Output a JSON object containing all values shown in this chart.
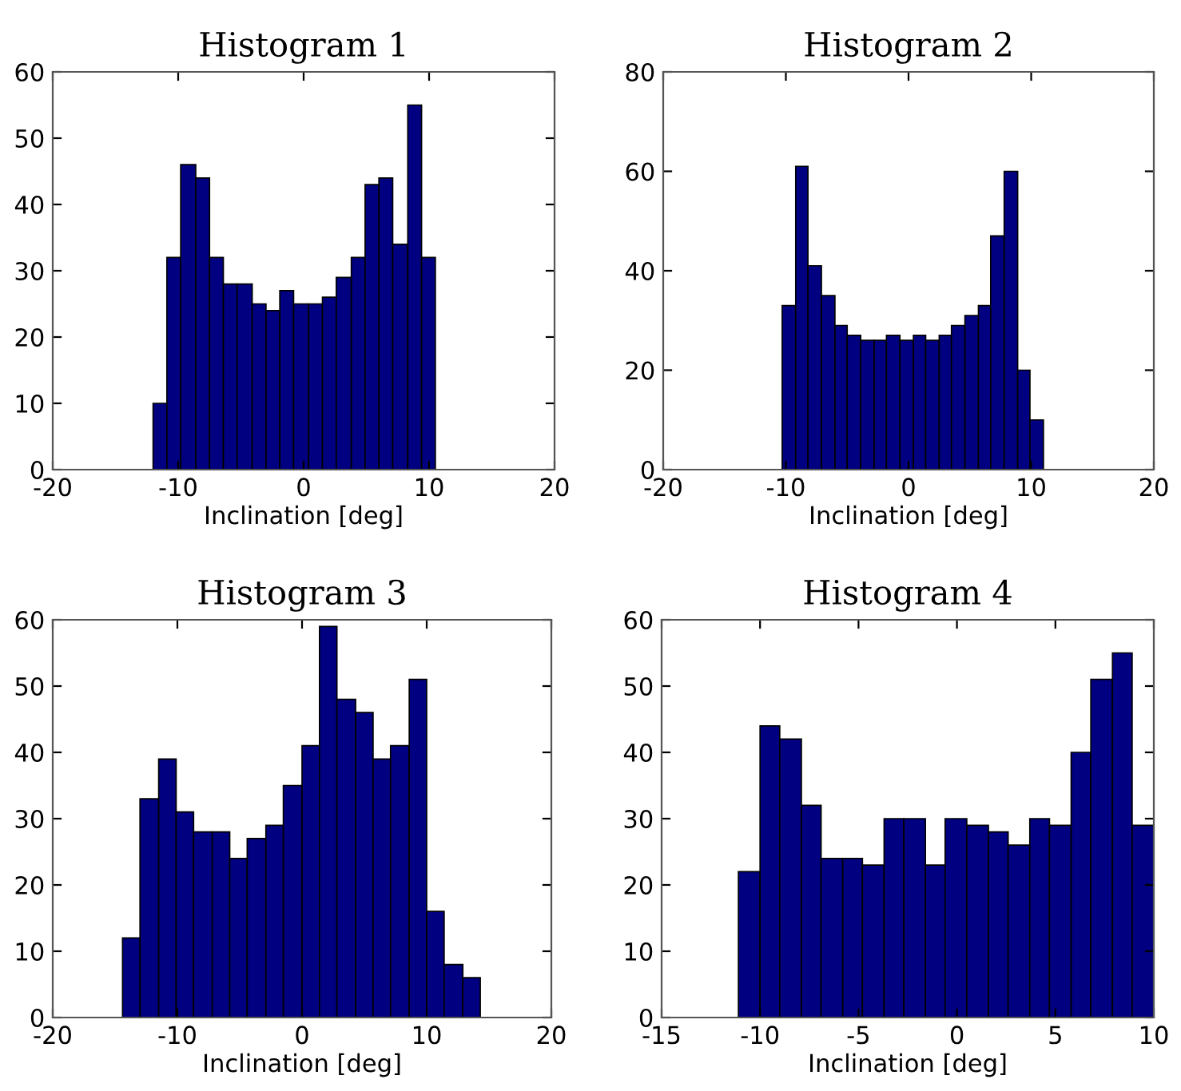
{
  "chart_data": [
    {
      "type": "histogram",
      "title": "Histogram 1",
      "xlabel": "Inclination [deg]",
      "color": "#000080",
      "bins": [
        -12,
        -10.9,
        -9.8,
        -8.6,
        -7.5,
        -6.4,
        -5.3,
        -4.1,
        -3,
        -1.9,
        -0.8,
        0.4,
        1.5,
        2.6,
        3.8,
        4.9,
        6,
        7.1,
        8.3,
        9.4,
        10.5
      ],
      "values": [
        10,
        32,
        46,
        44,
        32,
        28,
        28,
        25,
        24,
        27,
        25,
        25,
        26,
        29,
        32,
        43,
        44,
        34,
        55,
        32
      ],
      "xlim": [
        -20,
        20
      ],
      "xticks": [
        -20,
        -10,
        0,
        10,
        20
      ],
      "ylim": [
        0,
        60
      ],
      "yticks": [
        0,
        10,
        20,
        30,
        40,
        50,
        60
      ]
    },
    {
      "type": "histogram",
      "title": "Histogram 2",
      "xlabel": "Inclination [deg]",
      "color": "#000080",
      "bins": [
        -10.3,
        -9.2,
        -8.2,
        -7.1,
        -6.0,
        -5.0,
        -3.9,
        -2.8,
        -1.8,
        -0.7,
        0.4,
        1.4,
        2.5,
        3.5,
        4.6,
        5.7,
        6.7,
        7.8,
        8.9,
        9.9,
        11.0
      ],
      "values": [
        33,
        61,
        41,
        35,
        29,
        27,
        26,
        26,
        27,
        26,
        27,
        26,
        27,
        29,
        31,
        33,
        47,
        60,
        20,
        10
      ],
      "xlim": [
        -20,
        20
      ],
      "xticks": [
        -20,
        -10,
        0,
        10,
        20
      ],
      "ylim": [
        0,
        80
      ],
      "yticks": [
        0,
        20,
        40,
        60,
        80
      ]
    },
    {
      "type": "histogram",
      "title": "Histogram 3",
      "xlabel": "Inclination [deg]",
      "color": "#000080",
      "bins": [
        -14.4,
        -13.0,
        -11.5,
        -10.1,
        -8.7,
        -7.2,
        -5.8,
        -4.4,
        -2.9,
        -1.5,
        0.0,
        1.4,
        2.8,
        4.3,
        5.7,
        7.1,
        8.6,
        10.0,
        11.4,
        12.9,
        14.3
      ],
      "values": [
        12,
        33,
        39,
        31,
        28,
        28,
        24,
        27,
        29,
        35,
        41,
        59,
        48,
        46,
        39,
        41,
        51,
        16,
        8,
        6
      ],
      "xlim": [
        -20,
        20
      ],
      "xticks": [
        -20,
        -10,
        0,
        10,
        20
      ],
      "ylim": [
        0,
        60
      ],
      "yticks": [
        0,
        10,
        20,
        30,
        40,
        50,
        60
      ]
    },
    {
      "type": "histogram",
      "title": "Histogram 4",
      "xlabel": "Inclination [deg]",
      "color": "#000080",
      "bins": [
        -11.1,
        -10.0,
        -9.0,
        -7.9,
        -6.9,
        -5.8,
        -4.8,
        -3.7,
        -2.7,
        -1.6,
        -0.6,
        0.5,
        1.6,
        2.6,
        3.7,
        4.7,
        5.8,
        6.8,
        7.9,
        8.9,
        10.0
      ],
      "values": [
        22,
        44,
        42,
        32,
        24,
        24,
        23,
        30,
        30,
        23,
        30,
        29,
        28,
        26,
        30,
        29,
        40,
        51,
        55,
        29
      ],
      "xlim": [
        -15,
        10
      ],
      "xticks": [
        -15,
        -10,
        -5,
        0,
        5,
        10
      ],
      "ylim": [
        0,
        60
      ],
      "yticks": [
        0,
        10,
        20,
        30,
        40,
        50,
        60
      ]
    }
  ]
}
